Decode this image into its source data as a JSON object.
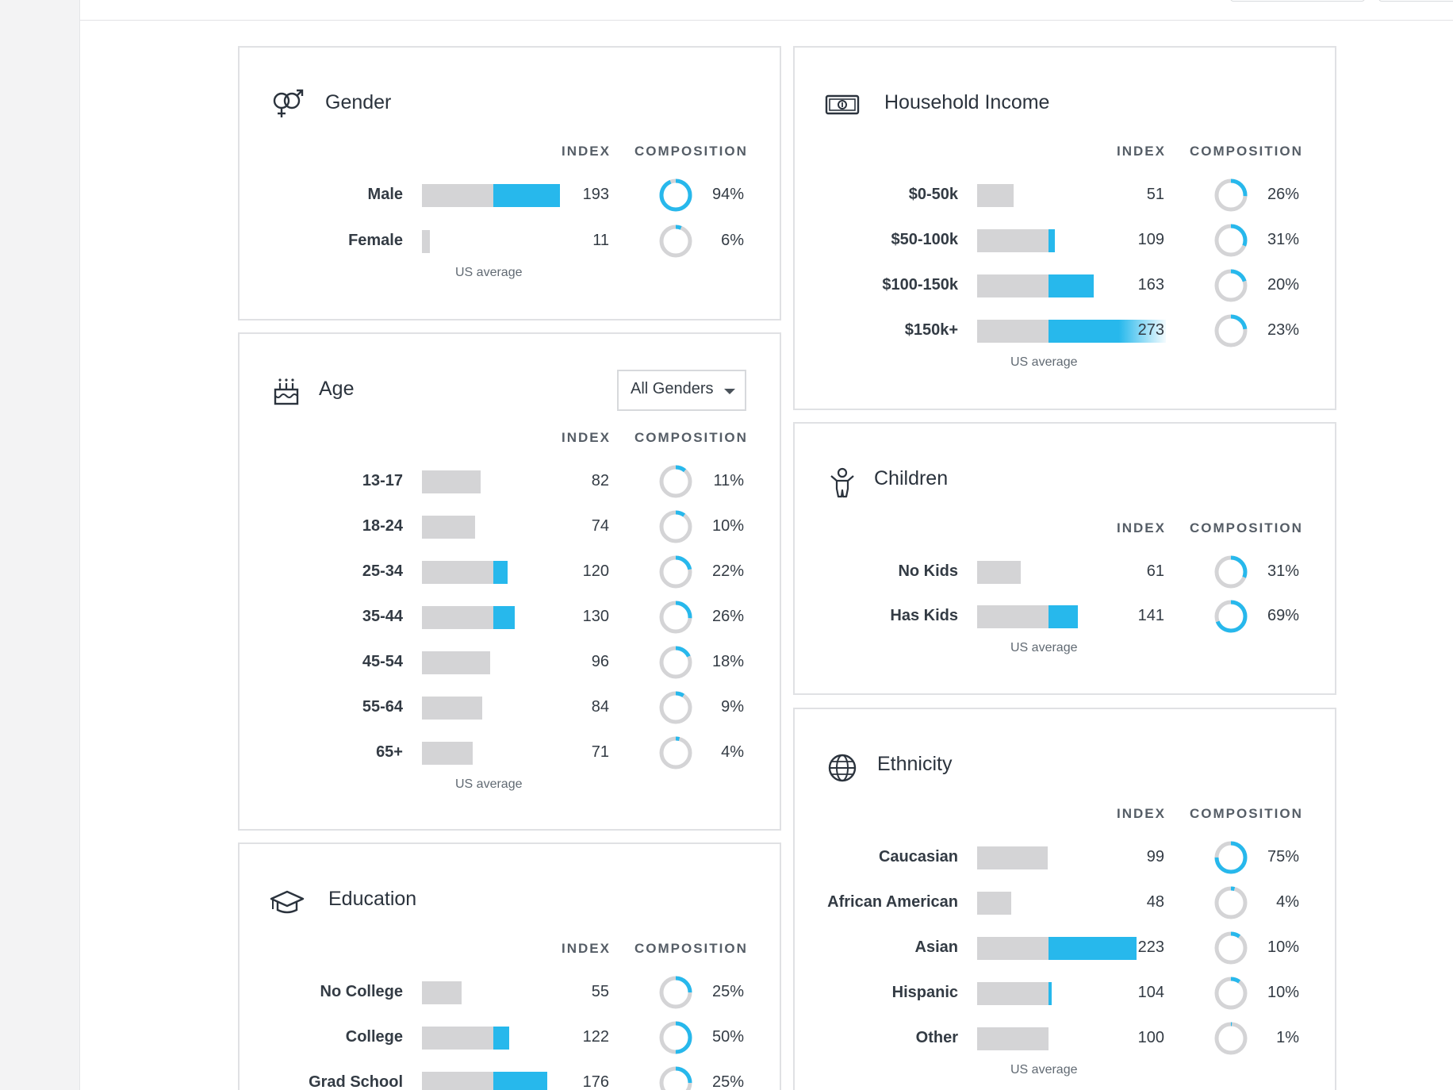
{
  "colors": {
    "accent": "#27b8ec",
    "bar_base": "#d4d4d6",
    "donut_track": "#d4d4d6",
    "border": "#e0e1e4"
  },
  "icons": {
    "gender": "gender-icon",
    "income": "money-icon",
    "age": "cake-icon",
    "children": "child-icon",
    "education": "graduation-cap-icon",
    "ethnicity": "globe-icon"
  },
  "gender": {
    "title": "Gender",
    "index_label": "INDEX",
    "composition_label": "COMPOSITION",
    "us_average": "US average",
    "rows": [
      {
        "label": "Male",
        "index": "193",
        "composition": "94%",
        "comp_frac": 0.94
      },
      {
        "label": "Female",
        "index": "11",
        "composition": "6%",
        "comp_frac": 0.06
      }
    ]
  },
  "age": {
    "title": "Age",
    "filter_value": "All Genders",
    "index_label": "INDEX",
    "composition_label": "COMPOSITION",
    "us_average": "US average",
    "rows": [
      {
        "label": "13-17",
        "index": "82",
        "composition": "11%",
        "comp_frac": 0.11
      },
      {
        "label": "18-24",
        "index": "74",
        "composition": "10%",
        "comp_frac": 0.1
      },
      {
        "label": "25-34",
        "index": "120",
        "composition": "22%",
        "comp_frac": 0.22
      },
      {
        "label": "35-44",
        "index": "130",
        "composition": "26%",
        "comp_frac": 0.26
      },
      {
        "label": "45-54",
        "index": "96",
        "composition": "18%",
        "comp_frac": 0.18
      },
      {
        "label": "55-64",
        "index": "84",
        "composition": "9%",
        "comp_frac": 0.09
      },
      {
        "label": "65+",
        "index": "71",
        "composition": "4%",
        "comp_frac": 0.04
      }
    ]
  },
  "education": {
    "title": "Education",
    "index_label": "INDEX",
    "composition_label": "COMPOSITION",
    "rows": [
      {
        "label": "No College",
        "index": "55",
        "composition": "25%",
        "comp_frac": 0.25
      },
      {
        "label": "College",
        "index": "122",
        "composition": "50%",
        "comp_frac": 0.5
      },
      {
        "label": "Grad School",
        "index": "176",
        "composition": "25%",
        "comp_frac": 0.25
      }
    ]
  },
  "income": {
    "title": "Household Income",
    "index_label": "INDEX",
    "composition_label": "COMPOSITION",
    "us_average": "US average",
    "rows": [
      {
        "label": "$0-50k",
        "index": "51",
        "composition": "26%",
        "comp_frac": 0.26
      },
      {
        "label": "$50-100k",
        "index": "109",
        "composition": "31%",
        "comp_frac": 0.31
      },
      {
        "label": "$100-150k",
        "index": "163",
        "composition": "20%",
        "comp_frac": 0.2
      },
      {
        "label": "$150k+",
        "index": "273",
        "composition": "23%",
        "comp_frac": 0.23
      }
    ]
  },
  "children": {
    "title": "Children",
    "index_label": "INDEX",
    "composition_label": "COMPOSITION",
    "us_average": "US average",
    "rows": [
      {
        "label": "No Kids",
        "index": "61",
        "composition": "31%",
        "comp_frac": 0.31
      },
      {
        "label": "Has Kids",
        "index": "141",
        "composition": "69%",
        "comp_frac": 0.69
      }
    ]
  },
  "ethnicity": {
    "title": "Ethnicity",
    "index_label": "INDEX",
    "composition_label": "COMPOSITION",
    "us_average": "US average",
    "rows": [
      {
        "label": "Caucasian",
        "index": "99",
        "composition": "75%",
        "comp_frac": 0.75
      },
      {
        "label": "African American",
        "index": "48",
        "composition": "4%",
        "comp_frac": 0.04
      },
      {
        "label": "Asian",
        "index": "223",
        "composition": "10%",
        "comp_frac": 0.1
      },
      {
        "label": "Hispanic",
        "index": "104",
        "composition": "10%",
        "comp_frac": 0.1
      },
      {
        "label": "Other",
        "index": "100",
        "composition": "1%",
        "comp_frac": 0.01
      }
    ]
  }
}
